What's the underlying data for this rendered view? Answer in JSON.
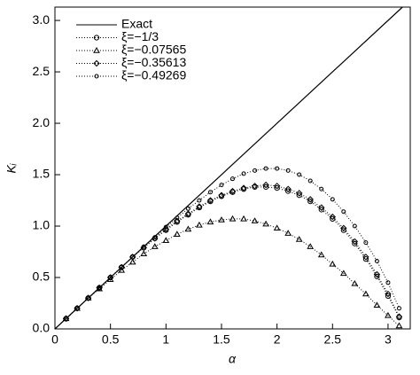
{
  "chart_data": {
    "type": "line",
    "x_label": "α",
    "y_label": "Kᵢ",
    "xlim": [
      0,
      3.2
    ],
    "ylim": [
      0,
      3.13
    ],
    "xticks": [
      0,
      0.5,
      1,
      1.5,
      2,
      2.5,
      3
    ],
    "yticks": [
      {
        "value": 0,
        "label": "0.0"
      },
      {
        "value": 0.5,
        "label": "0.5"
      },
      {
        "value": 1,
        "label": "1.0"
      },
      {
        "value": 1.5,
        "label": "1.5"
      },
      {
        "value": 2,
        "label": "2.0"
      },
      {
        "value": 2.5,
        "label": "2.5"
      },
      {
        "value": 3,
        "label": "3.0"
      }
    ],
    "series": [
      {
        "name": "Exact",
        "color": "#000000",
        "style": "solid",
        "marker": "none",
        "x": [
          0,
          3.13
        ],
        "values": [
          0,
          3.13
        ]
      },
      {
        "name": "ξ=−1/3",
        "color": "#000000",
        "style": "dotted",
        "marker": "circle",
        "x": [
          0.1,
          0.2,
          0.3,
          0.4,
          0.5,
          0.6,
          0.7,
          0.8,
          0.9,
          1.0,
          1.1,
          1.2,
          1.3,
          1.4,
          1.5,
          1.6,
          1.7,
          1.8,
          1.9,
          2.0,
          2.1,
          2.2,
          2.3,
          2.4,
          2.5,
          2.6,
          2.7,
          2.8,
          2.9,
          3.0,
          3.1
        ],
        "values": [
          0.1,
          0.2,
          0.3,
          0.4,
          0.5,
          0.6,
          0.7,
          0.79,
          0.88,
          0.96,
          1.04,
          1.11,
          1.18,
          1.24,
          1.29,
          1.33,
          1.36,
          1.38,
          1.38,
          1.37,
          1.34,
          1.3,
          1.24,
          1.16,
          1.07,
          0.96,
          0.83,
          0.68,
          0.51,
          0.32,
          0.11
        ]
      },
      {
        "name": "ξ=−0.07565",
        "color": "#000000",
        "style": "dotted",
        "marker": "triangle",
        "x": [
          0.1,
          0.2,
          0.3,
          0.4,
          0.5,
          0.6,
          0.7,
          0.8,
          0.9,
          1.0,
          1.1,
          1.2,
          1.3,
          1.4,
          1.5,
          1.6,
          1.7,
          1.8,
          1.9,
          2.0,
          2.1,
          2.2,
          2.3,
          2.4,
          2.5,
          2.6,
          2.7,
          2.8,
          2.9,
          3.0,
          3.1
        ],
        "values": [
          0.1,
          0.2,
          0.3,
          0.39,
          0.48,
          0.57,
          0.65,
          0.73,
          0.8,
          0.86,
          0.92,
          0.97,
          1.01,
          1.04,
          1.06,
          1.07,
          1.07,
          1.05,
          1.02,
          0.98,
          0.93,
          0.87,
          0.8,
          0.72,
          0.63,
          0.54,
          0.44,
          0.34,
          0.23,
          0.13,
          0.03
        ]
      },
      {
        "name": "ξ=−0.35613",
        "color": "#000000",
        "style": "dotted",
        "marker": "diamond",
        "x": [
          0.1,
          0.2,
          0.3,
          0.4,
          0.5,
          0.6,
          0.7,
          0.8,
          0.9,
          1.0,
          1.1,
          1.2,
          1.3,
          1.4,
          1.5,
          1.6,
          1.7,
          1.8,
          1.9,
          2.0,
          2.1,
          2.2,
          2.3,
          2.4,
          2.5,
          2.6,
          2.7,
          2.8,
          2.9,
          3.0,
          3.1
        ],
        "values": [
          0.1,
          0.2,
          0.3,
          0.4,
          0.5,
          0.6,
          0.7,
          0.79,
          0.88,
          0.97,
          1.05,
          1.12,
          1.19,
          1.25,
          1.3,
          1.34,
          1.37,
          1.39,
          1.4,
          1.39,
          1.36,
          1.32,
          1.26,
          1.18,
          1.09,
          0.98,
          0.85,
          0.7,
          0.53,
          0.34,
          0.12
        ]
      },
      {
        "name": "ξ=−0.49269",
        "color": "#000000",
        "style": "dotted",
        "marker": "small-circle",
        "x": [
          0.1,
          0.2,
          0.3,
          0.4,
          0.5,
          0.6,
          0.7,
          0.8,
          0.9,
          1.0,
          1.1,
          1.2,
          1.3,
          1.4,
          1.5,
          1.6,
          1.7,
          1.8,
          1.9,
          2.0,
          2.1,
          2.2,
          2.3,
          2.4,
          2.5,
          2.6,
          2.7,
          2.8,
          2.9,
          3.0,
          3.1
        ],
        "values": [
          0.1,
          0.2,
          0.3,
          0.4,
          0.5,
          0.6,
          0.7,
          0.8,
          0.89,
          0.99,
          1.08,
          1.17,
          1.25,
          1.33,
          1.4,
          1.46,
          1.51,
          1.54,
          1.56,
          1.56,
          1.54,
          1.5,
          1.44,
          1.36,
          1.26,
          1.14,
          1.0,
          0.84,
          0.66,
          0.45,
          0.2
        ]
      }
    ]
  }
}
